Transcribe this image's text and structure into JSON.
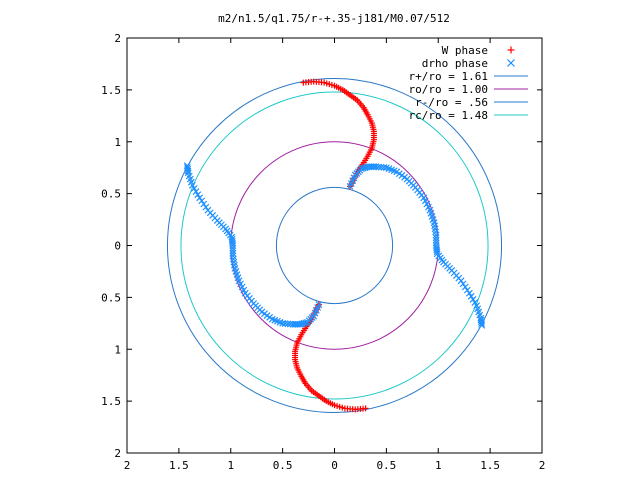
{
  "chart_data": {
    "type": "scatter",
    "title": "m2/n1.5/q1.75/r-+.35-j181/M0.07/512",
    "xlabel": "",
    "ylabel": "",
    "xlim": [
      -2,
      2
    ],
    "ylim": [
      -2,
      2
    ],
    "x_tick_labels": [
      "2",
      "1.5",
      "1",
      "0.5",
      "0",
      "0.5",
      "1",
      "1.5",
      "2"
    ],
    "y_tick_labels": [
      "2",
      "1.5",
      "1",
      "0.5",
      "0",
      "0.5",
      "1",
      "1.5",
      "2"
    ],
    "grid": false,
    "legend_position": "top-right",
    "legend": [
      {
        "label": "W phase",
        "kind": "marker",
        "symbol": "+",
        "color": "#ff0000"
      },
      {
        "label": "drho phase",
        "kind": "marker",
        "symbol": "x",
        "color": "#1e90ff"
      },
      {
        "label": "r+/ro = 1.61",
        "kind": "circle",
        "radius": 1.61,
        "color": "#2a78c8"
      },
      {
        "label": "ro/ro = 1.00",
        "kind": "circle",
        "radius": 1.0,
        "color": "#a020a0"
      },
      {
        "label": "r-/ro = .56",
        "kind": "circle",
        "radius": 0.56,
        "color": "#2a78c8"
      },
      {
        "label": "rc/ro = 1.48",
        "kind": "circle",
        "radius": 1.48,
        "color": "#20c8c8"
      }
    ],
    "series": [
      {
        "name": "W phase",
        "color": "#ff0000",
        "marker": "+",
        "points": [
          [
            -0.3,
            1.57
          ],
          [
            -0.2,
            1.58
          ],
          [
            -0.1,
            1.57
          ],
          [
            0.0,
            1.54
          ],
          [
            0.08,
            1.5
          ],
          [
            0.15,
            1.45
          ],
          [
            0.22,
            1.4
          ],
          [
            0.28,
            1.33
          ],
          [
            0.32,
            1.26
          ],
          [
            0.36,
            1.18
          ],
          [
            0.38,
            1.1
          ],
          [
            0.38,
            1.02
          ],
          [
            0.36,
            0.94
          ],
          [
            0.32,
            0.86
          ],
          [
            0.27,
            0.78
          ],
          [
            0.22,
            0.71
          ],
          [
            0.18,
            0.63
          ],
          [
            0.15,
            0.57
          ],
          [
            0.3,
            -1.57
          ],
          [
            0.2,
            -1.58
          ],
          [
            0.1,
            -1.57
          ],
          [
            0.0,
            -1.54
          ],
          [
            -0.08,
            -1.5
          ],
          [
            -0.15,
            -1.45
          ],
          [
            -0.22,
            -1.4
          ],
          [
            -0.28,
            -1.33
          ],
          [
            -0.32,
            -1.26
          ],
          [
            -0.36,
            -1.18
          ],
          [
            -0.38,
            -1.1
          ],
          [
            -0.38,
            -1.02
          ],
          [
            -0.36,
            -0.94
          ],
          [
            -0.32,
            -0.86
          ],
          [
            -0.27,
            -0.78
          ],
          [
            -0.22,
            -0.71
          ],
          [
            -0.18,
            -0.63
          ],
          [
            -0.15,
            -0.57
          ]
        ]
      },
      {
        "name": "drho phase",
        "color": "#1e90ff",
        "marker": "x",
        "points": [
          [
            0.15,
            0.57
          ],
          [
            0.2,
            0.68
          ],
          [
            0.26,
            0.74
          ],
          [
            0.33,
            0.76
          ],
          [
            0.4,
            0.76
          ],
          [
            0.5,
            0.75
          ],
          [
            0.6,
            0.71
          ],
          [
            0.7,
            0.64
          ],
          [
            0.78,
            0.56
          ],
          [
            0.86,
            0.46
          ],
          [
            0.92,
            0.34
          ],
          [
            0.96,
            0.22
          ],
          [
            0.98,
            0.1
          ],
          [
            0.98,
            0.0
          ],
          [
            0.99,
            -0.08
          ],
          [
            1.05,
            -0.16
          ],
          [
            1.13,
            -0.24
          ],
          [
            1.22,
            -0.34
          ],
          [
            1.3,
            -0.46
          ],
          [
            1.37,
            -0.58
          ],
          [
            1.41,
            -0.7
          ],
          [
            1.42,
            -0.77
          ],
          [
            -0.15,
            -0.57
          ],
          [
            -0.2,
            -0.68
          ],
          [
            -0.26,
            -0.74
          ],
          [
            -0.33,
            -0.76
          ],
          [
            -0.4,
            -0.76
          ],
          [
            -0.5,
            -0.75
          ],
          [
            -0.6,
            -0.71
          ],
          [
            -0.7,
            -0.64
          ],
          [
            -0.78,
            -0.56
          ],
          [
            -0.86,
            -0.46
          ],
          [
            -0.92,
            -0.34
          ],
          [
            -0.96,
            -0.22
          ],
          [
            -0.98,
            -0.1
          ],
          [
            -0.98,
            0.0
          ],
          [
            -0.99,
            0.08
          ],
          [
            -1.05,
            0.16
          ],
          [
            -1.13,
            0.24
          ],
          [
            -1.22,
            0.34
          ],
          [
            -1.3,
            0.46
          ],
          [
            -1.37,
            0.58
          ],
          [
            -1.41,
            0.7
          ],
          [
            -1.42,
            0.77
          ]
        ]
      }
    ]
  }
}
